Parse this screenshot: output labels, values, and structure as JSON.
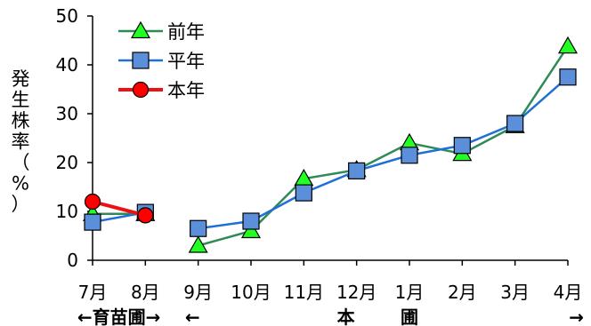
{
  "chart_data": {
    "type": "line",
    "categories": [
      "7月",
      "8月",
      "9月",
      "10月",
      "11月",
      "12月",
      "1月",
      "2月",
      "3月",
      "4月"
    ],
    "ylabel": "発生株率（%）",
    "ylim": [
      0,
      50
    ],
    "yticks": [
      0,
      10,
      20,
      30,
      40,
      50
    ],
    "grid": false,
    "legend_position": "top-left",
    "periods": [
      {
        "label": "←育苗圃→",
        "from": 0,
        "to": 1
      },
      {
        "label": "←",
        "from": 2,
        "to": 2
      },
      {
        "label": "本",
        "from": 5,
        "to": 5
      },
      {
        "label": "圃",
        "from": 6,
        "to": 6
      },
      {
        "label": "→",
        "from": 9,
        "to": 9
      }
    ],
    "series": [
      {
        "name": "前年",
        "marker": "triangle",
        "color": "#2e8b57",
        "marker_fill": "#22ff22",
        "values": [
          9.5,
          9.5,
          3.0,
          6.0,
          16.7,
          18.5,
          24.0,
          21.8,
          27.5,
          43.8
        ]
      },
      {
        "name": "平年",
        "marker": "square",
        "color": "#1f6fd6",
        "marker_fill": "#5b8fd9",
        "values": [
          7.8,
          9.8,
          6.5,
          8.0,
          13.8,
          18.3,
          21.5,
          23.5,
          28.0,
          37.5
        ]
      },
      {
        "name": "本年",
        "marker": "circle",
        "color": "#ee1111",
        "marker_fill": "#ff0000",
        "values": [
          12.0,
          9.2,
          null,
          null,
          null,
          null,
          null,
          null,
          null,
          null
        ]
      }
    ]
  }
}
